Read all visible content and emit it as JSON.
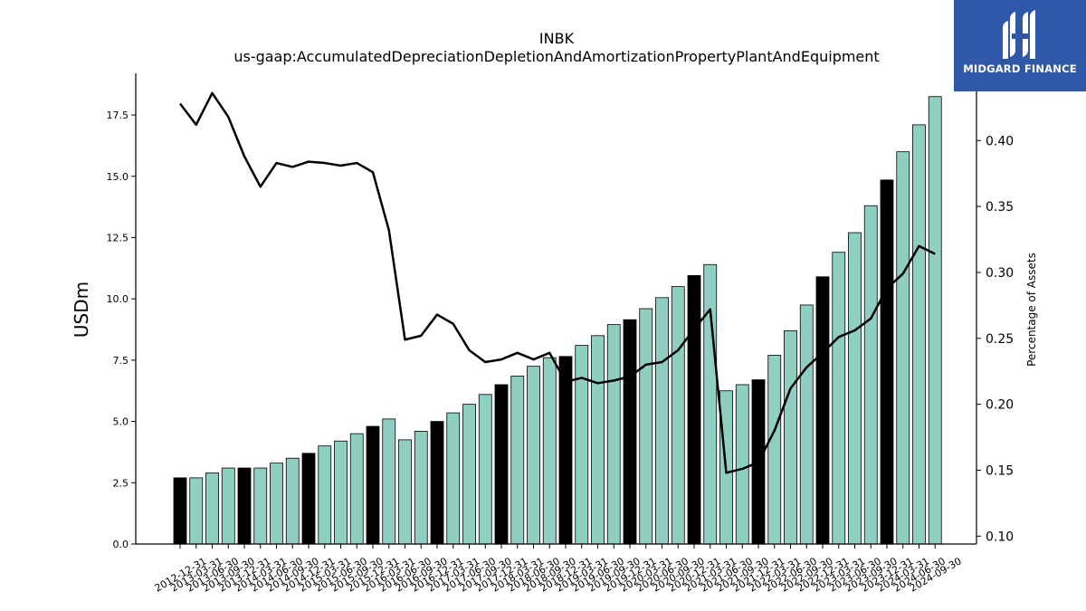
{
  "chart_data": {
    "type": "bar",
    "title": "INBK",
    "subtitle": "us-gaap:AccumulatedDepreciationDepletionAndAmortizationPropertyPlantAndEquipment",
    "ylabel": "USDm",
    "y2label": "Percentage of Assets",
    "ylim": [
      0,
      19.2
    ],
    "y2lim": [
      0.094,
      0.451
    ],
    "yticks": [
      "0.0",
      "2.5",
      "5.0",
      "7.5",
      "10.0",
      "12.5",
      "15.0",
      "17.5"
    ],
    "y2ticks": [
      "0.10",
      "0.15",
      "0.20",
      "0.25",
      "0.30",
      "0.35",
      "0.40"
    ],
    "bar_colors": {
      "default": "#8ecfc2",
      "highlight": "#000000"
    },
    "line_color": "#000000",
    "categories": [
      "2012-12-31",
      "2013-03-31",
      "2013-06-30",
      "2013-09-30",
      "2013-12-31",
      "2014-03-31",
      "2014-06-30",
      "2014-09-30",
      "2014-12-31",
      "2015-03-31",
      "2015-06-30",
      "2015-09-30",
      "2015-12-31",
      "2016-03-31",
      "2016-06-30",
      "2016-09-30",
      "2016-12-31",
      "2017-03-31",
      "2017-06-30",
      "2017-09-30",
      "2017-12-31",
      "2018-03-31",
      "2018-06-30",
      "2018-09-30",
      "2018-12-31",
      "2019-03-31",
      "2019-06-30",
      "2019-09-30",
      "2019-12-31",
      "2020-03-31",
      "2020-06-30",
      "2020-09-30",
      "2020-12-31",
      "2021-03-31",
      "2021-06-30",
      "2021-09-30",
      "2021-12-31",
      "2022-03-31",
      "2022-06-30",
      "2022-09-30",
      "2022-12-31",
      "2023-03-31",
      "2023-06-30",
      "2023-09-30",
      "2023-12-31",
      "2024-03-31",
      "2024-06-30",
      "2024-09-30"
    ],
    "series": [
      {
        "type": "bar",
        "values": [
          2.7,
          2.7,
          2.9,
          3.1,
          3.1,
          3.1,
          3.3,
          3.5,
          3.7,
          4.0,
          4.2,
          4.5,
          4.8,
          5.1,
          4.25,
          4.6,
          5.0,
          5.35,
          5.7,
          6.1,
          6.5,
          6.85,
          7.25,
          7.6,
          7.65,
          8.1,
          8.5,
          8.95,
          9.15,
          9.6,
          10.05,
          10.5,
          10.95,
          11.4,
          6.25,
          6.5,
          6.7,
          7.7,
          8.7,
          9.75,
          10.9,
          11.9,
          12.7,
          13.8,
          14.85,
          16.0,
          17.1,
          18.25
        ],
        "highlight": [
          true,
          false,
          false,
          false,
          true,
          false,
          false,
          false,
          true,
          false,
          false,
          false,
          true,
          false,
          false,
          false,
          true,
          false,
          false,
          false,
          true,
          false,
          false,
          false,
          true,
          false,
          false,
          false,
          true,
          false,
          false,
          false,
          true,
          false,
          false,
          false,
          true,
          false,
          false,
          false,
          true,
          false,
          false,
          false,
          true,
          false,
          false,
          false
        ]
      },
      {
        "type": "line",
        "axis": "right",
        "values": [
          0.428,
          0.412,
          0.436,
          0.418,
          0.388,
          0.365,
          0.383,
          0.38,
          0.384,
          0.383,
          0.381,
          0.383,
          0.376,
          0.332,
          0.249,
          0.252,
          0.268,
          0.261,
          0.241,
          0.232,
          0.234,
          0.239,
          0.234,
          0.239,
          0.217,
          0.22,
          0.216,
          0.218,
          0.221,
          0.23,
          0.232,
          0.241,
          0.257,
          0.272,
          0.148,
          0.151,
          0.156,
          0.18,
          0.212,
          0.228,
          0.239,
          0.251,
          0.256,
          0.265,
          0.288,
          0.299,
          0.32,
          0.314
        ]
      }
    ]
  },
  "logo": {
    "text": "MIDGARD FINANCE"
  }
}
